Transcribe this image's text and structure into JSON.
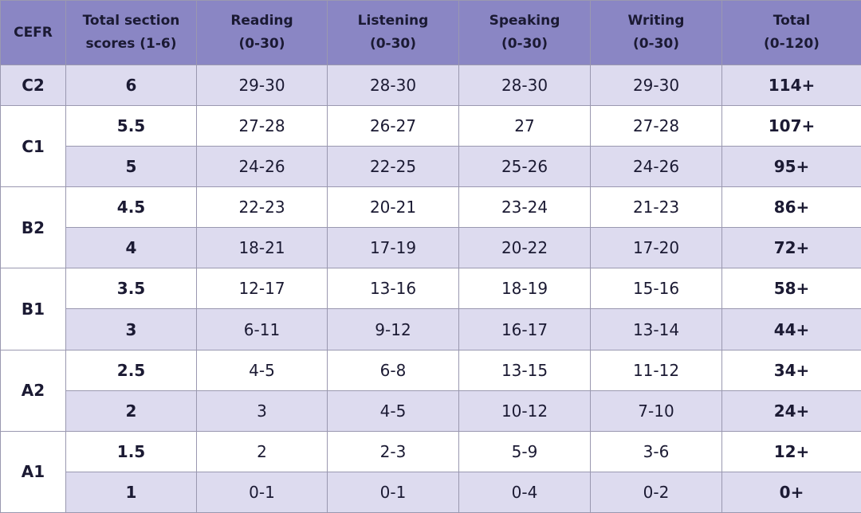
{
  "table": {
    "header": [
      "CEFR",
      "Total section\nscores (1-6)",
      "Reading\n(0-30)",
      "Listening\n(0-30)",
      "Speaking\n(0-30)",
      "Writing\n(0-30)",
      "Total\n(0-120)"
    ],
    "groups": [
      {
        "cefr": "C2",
        "rows": [
          [
            "6",
            "29-30",
            "28-30",
            "28-30",
            "29-30",
            "114+"
          ]
        ]
      },
      {
        "cefr": "C1",
        "rows": [
          [
            "5.5",
            "27-28",
            "26-27",
            "27",
            "27-28",
            "107+"
          ],
          [
            "5",
            "24-26",
            "22-25",
            "25-26",
            "24-26",
            "95+"
          ]
        ]
      },
      {
        "cefr": "B2",
        "rows": [
          [
            "4.5",
            "22-23",
            "20-21",
            "23-24",
            "21-23",
            "86+"
          ],
          [
            "4",
            "18-21",
            "17-19",
            "20-22",
            "17-20",
            "72+"
          ]
        ]
      },
      {
        "cefr": "B1",
        "rows": [
          [
            "3.5",
            "12-17",
            "13-16",
            "18-19",
            "15-16",
            "58+"
          ],
          [
            "3",
            "6-11",
            "9-12",
            "16-17",
            "13-14",
            "44+"
          ]
        ]
      },
      {
        "cefr": "A2",
        "rows": [
          [
            "2.5",
            "4-5",
            "6-8",
            "13-15",
            "11-12",
            "34+"
          ],
          [
            "2",
            "3",
            "4-5",
            "10-12",
            "7-10",
            "24+"
          ]
        ]
      },
      {
        "cefr": "A1",
        "rows": [
          [
            "1.5",
            "2",
            "2-3",
            "5-9",
            "3-6",
            "12+"
          ],
          [
            "1",
            "0-1",
            "0-1",
            "0-4",
            "0-2",
            "0+"
          ]
        ]
      }
    ]
  }
}
